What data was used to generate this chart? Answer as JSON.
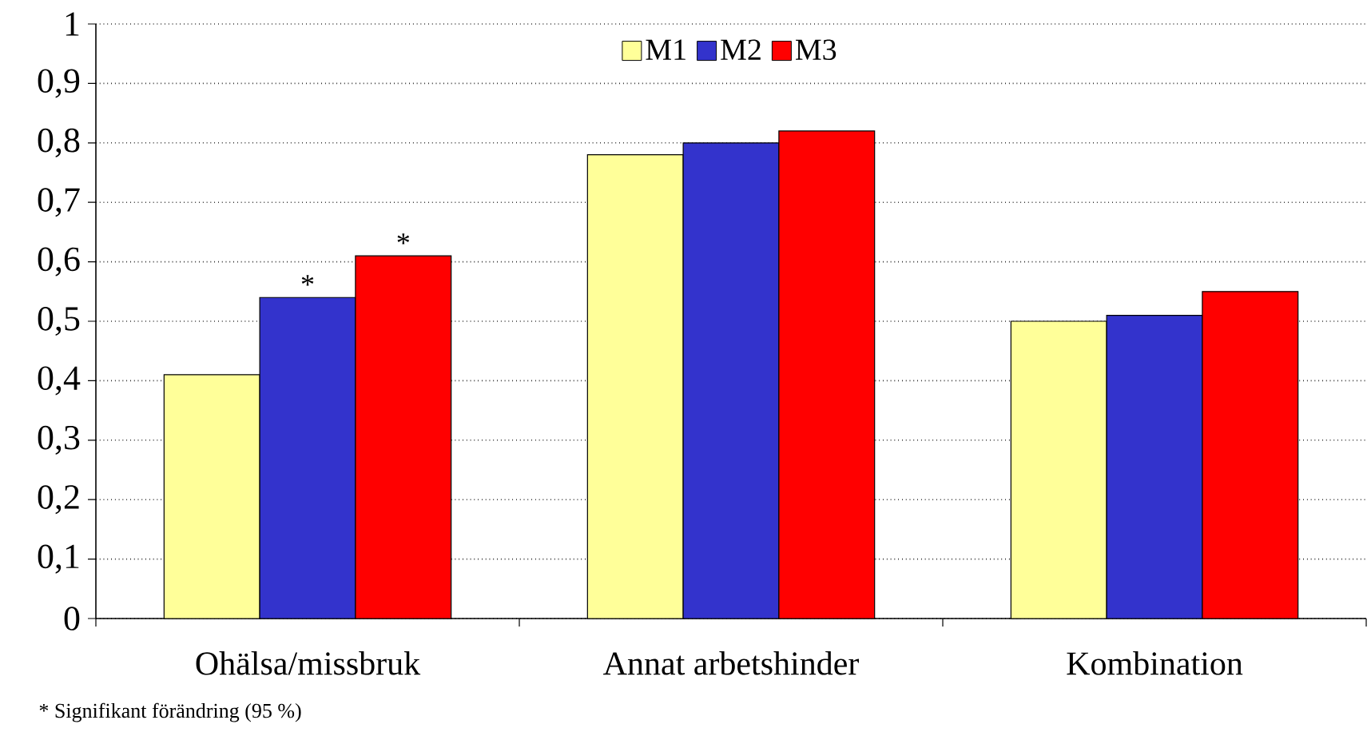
{
  "chart_data": {
    "type": "bar",
    "categories": [
      "Ohälsa/missbruk",
      "Annat arbetshinder",
      "Kombination"
    ],
    "series": [
      {
        "name": "M1",
        "color": "#ffff99",
        "values": [
          0.41,
          0.78,
          0.5
        ]
      },
      {
        "name": "M2",
        "color": "#3333cc",
        "values": [
          0.54,
          0.8,
          0.51
        ]
      },
      {
        "name": "M3",
        "color": "#ff0000",
        "values": [
          0.61,
          0.82,
          0.55
        ]
      }
    ],
    "ylim": [
      0,
      1
    ],
    "yticks": [
      0,
      {
        "value": 0.1,
        "label": "0,1"
      },
      {
        "value": 0.2,
        "label": "0,2"
      },
      {
        "value": 0.3,
        "label": "0,3"
      },
      {
        "value": 0.4,
        "label": "0,4"
      },
      {
        "value": 0.5,
        "label": "0,5"
      },
      {
        "value": 0.6,
        "label": "0,6"
      },
      {
        "value": 0.7,
        "label": "0,7"
      },
      {
        "value": 0.8,
        "label": "0,8"
      },
      {
        "value": 0.9,
        "label": "0,9"
      },
      1
    ],
    "grid": "y",
    "legend": "top",
    "annotations": [
      "*",
      "*",
      "* Signifikant förändring (95 %)"
    ]
  }
}
